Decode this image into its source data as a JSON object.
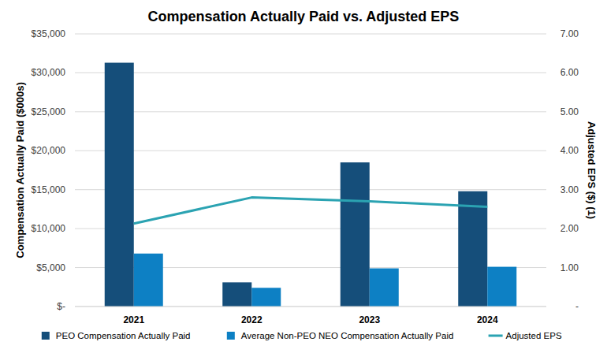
{
  "chart_data": {
    "type": "bar",
    "title": "Compensation Actually Paid vs. Adjusted EPS",
    "y_label": "Compensation Actually Paid ($000s)",
    "y2_label": "Adjusted EPS ($) (1)",
    "categories": [
      "2021",
      "2022",
      "2023",
      "2024"
    ],
    "series": [
      {
        "name": "PEO Compensation Actually Paid",
        "type": "bar",
        "color": "#154e7a",
        "values": [
          31300,
          3100,
          18500,
          14800
        ]
      },
      {
        "name": "Average Non-PEO NEO Compensation Actually Paid",
        "type": "bar",
        "color": "#0d80c4",
        "values": [
          6800,
          2400,
          4900,
          5100
        ]
      },
      {
        "name": "Adjusted EPS",
        "type": "line",
        "color": "#2ba3b2",
        "axis": "y2",
        "values": [
          2.13,
          2.8,
          2.7,
          2.56
        ]
      }
    ],
    "ylim": [
      0,
      35000
    ],
    "yticks": [
      {
        "value": 0,
        "label": "$-"
      },
      {
        "value": 5000,
        "label": "$5,000"
      },
      {
        "value": 10000,
        "label": "$10,000"
      },
      {
        "value": 15000,
        "label": "$15,000"
      },
      {
        "value": 20000,
        "label": "$20,000"
      },
      {
        "value": 25000,
        "label": "$25,000"
      },
      {
        "value": 30000,
        "label": "$30,000"
      },
      {
        "value": 35000,
        "label": "$35,000"
      }
    ],
    "y2lim": [
      0,
      7
    ],
    "y2ticks": [
      {
        "value": 0,
        "label": "-"
      },
      {
        "value": 1,
        "label": "1.00"
      },
      {
        "value": 2,
        "label": "2.00"
      },
      {
        "value": 3,
        "label": "3.00"
      },
      {
        "value": 4,
        "label": "4.00"
      },
      {
        "value": 5,
        "label": "5.00"
      },
      {
        "value": 6,
        "label": "6.00"
      },
      {
        "value": 7,
        "label": "7.00"
      }
    ],
    "grid": true,
    "legend": "bottom"
  }
}
